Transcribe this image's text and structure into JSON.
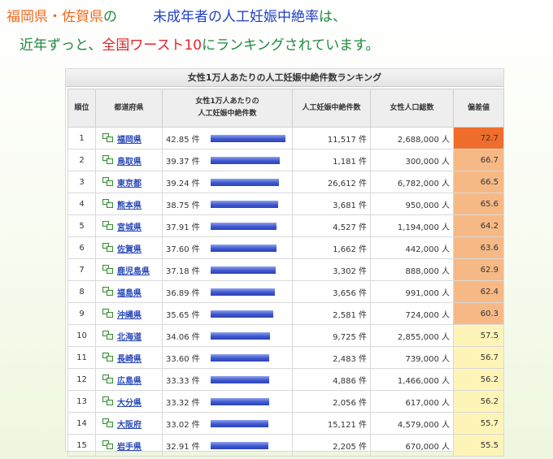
{
  "heading": {
    "prefectures": "福岡県・佐賀県",
    "no": "の",
    "subject": "未成年者の人工妊娠中絶率",
    "wa": "は、",
    "line2_pre": "近年ずっと、",
    "line2_red": "全国ワースト10",
    "line2_post": "にランキングされています。"
  },
  "table": {
    "title": "女性1万人あたりの人工妊娠中絶件数ランキング",
    "headers": {
      "rank": "順位",
      "prefecture": "都道府県",
      "rate_line1": "女性1万人あたりの",
      "rate_line2": "人工妊娠中絶件数",
      "abortions": "人工妊娠中絶件数",
      "population": "女性人口総数",
      "deviation": "偏差値"
    },
    "unit_count": "件",
    "unit_people": "人",
    "rate_max": 42.85,
    "colors": {
      "dev_top": "#f06d2c",
      "dev_high": "#f6b985",
      "dev_normal": "#fff4b8"
    },
    "rows": [
      {
        "rank": "1",
        "pref": "福岡県",
        "rate": "42.85 件",
        "rate_num": 42.85,
        "abortions": "11,517",
        "population": "2,688,000",
        "dev": "72.7",
        "tier": "top"
      },
      {
        "rank": "2",
        "pref": "鳥取県",
        "rate": "39.37 件",
        "rate_num": 39.37,
        "abortions": "1,181",
        "population": "300,000",
        "dev": "66.7",
        "tier": "high"
      },
      {
        "rank": "3",
        "pref": "東京都",
        "rate": "39.24 件",
        "rate_num": 39.24,
        "abortions": "26,612",
        "population": "6,782,000",
        "dev": "66.5",
        "tier": "high"
      },
      {
        "rank": "4",
        "pref": "熊本県",
        "rate": "38.75 件",
        "rate_num": 38.75,
        "abortions": "3,681",
        "population": "950,000",
        "dev": "65.6",
        "tier": "high"
      },
      {
        "rank": "5",
        "pref": "宮城県",
        "rate": "37.91 件",
        "rate_num": 37.91,
        "abortions": "4,527",
        "population": "1,194,000",
        "dev": "64.2",
        "tier": "high"
      },
      {
        "rank": "6",
        "pref": "佐賀県",
        "rate": "37.60 件",
        "rate_num": 37.6,
        "abortions": "1,662",
        "population": "442,000",
        "dev": "63.6",
        "tier": "high"
      },
      {
        "rank": "7",
        "pref": "鹿児島県",
        "rate": "37.18 件",
        "rate_num": 37.18,
        "abortions": "3,302",
        "population": "888,000",
        "dev": "62.9",
        "tier": "high"
      },
      {
        "rank": "8",
        "pref": "福島県",
        "rate": "36.89 件",
        "rate_num": 36.89,
        "abortions": "3,656",
        "population": "991,000",
        "dev": "62.4",
        "tier": "high"
      },
      {
        "rank": "9",
        "pref": "沖縄県",
        "rate": "35.65 件",
        "rate_num": 35.65,
        "abortions": "2,581",
        "population": "724,000",
        "dev": "60.3",
        "tier": "high"
      },
      {
        "rank": "10",
        "pref": "北海道",
        "rate": "34.06 件",
        "rate_num": 34.06,
        "abortions": "9,725",
        "population": "2,855,000",
        "dev": "57.5",
        "tier": "normal"
      },
      {
        "rank": "11",
        "pref": "長崎県",
        "rate": "33.60 件",
        "rate_num": 33.6,
        "abortions": "2,483",
        "population": "739,000",
        "dev": "56.7",
        "tier": "normal"
      },
      {
        "rank": "12",
        "pref": "広島県",
        "rate": "33.33 件",
        "rate_num": 33.33,
        "abortions": "4,886",
        "population": "1,466,000",
        "dev": "56.2",
        "tier": "normal"
      },
      {
        "rank": "13",
        "pref": "大分県",
        "rate": "33.32 件",
        "rate_num": 33.32,
        "abortions": "2,056",
        "population": "617,000",
        "dev": "56.2",
        "tier": "normal"
      },
      {
        "rank": "14",
        "pref": "大阪府",
        "rate": "33.02 件",
        "rate_num": 33.02,
        "abortions": "15,121",
        "population": "4,579,000",
        "dev": "55.7",
        "tier": "normal"
      },
      {
        "rank": "15",
        "pref": "岩手県",
        "rate": "32.91 件",
        "rate_num": 32.91,
        "abortions": "2,205",
        "population": "670,000",
        "dev": "55.5",
        "tier": "normal"
      }
    ]
  }
}
